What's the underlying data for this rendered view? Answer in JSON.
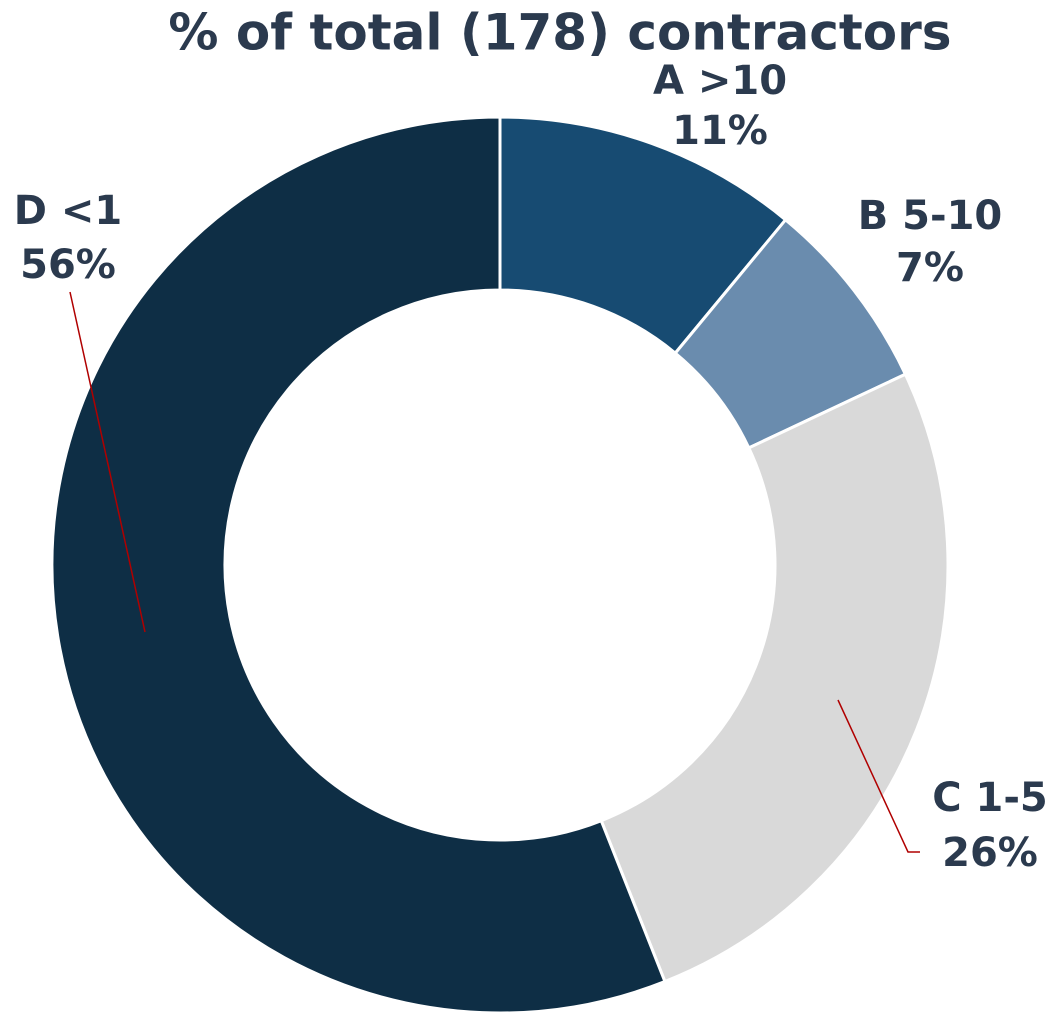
{
  "chart_data": {
    "type": "donut",
    "title": "% of total (178) contractors",
    "categories": [
      "A >10",
      "B 5-10",
      "C 1-5",
      "D <1"
    ],
    "values": [
      11,
      7,
      26,
      56
    ],
    "value_labels": [
      "11%",
      "7%",
      "26%",
      "56%"
    ],
    "colors": [
      "#174b72",
      "#6a8cae",
      "#d9d9d9",
      "#0e2e45"
    ]
  }
}
